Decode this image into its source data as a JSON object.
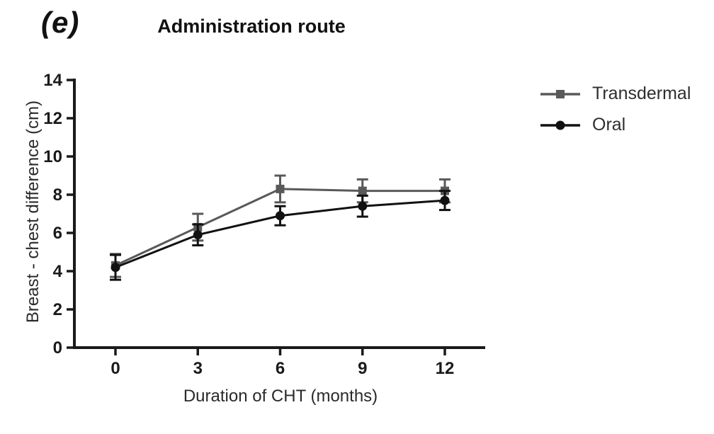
{
  "panel_label": "(e)",
  "title": "Administration route",
  "chart_data": {
    "type": "line",
    "x": [
      0,
      3,
      6,
      9,
      12
    ],
    "x_ticks": [
      "0",
      "3",
      "6",
      "9",
      "12"
    ],
    "y_ticks": [
      "0",
      "2",
      "4",
      "6",
      "8",
      "10",
      "12",
      "14"
    ],
    "xlabel": "Duration of CHT (months)",
    "ylabel": "Breast - chest difference (cm)",
    "xlim": [
      0,
      12
    ],
    "ylim": [
      0,
      14
    ],
    "grid": false,
    "legend_position": "right",
    "error_bars": true,
    "series": [
      {
        "name": "Transdermal",
        "marker": "square",
        "color": "#595959",
        "values": [
          4.3,
          6.3,
          8.3,
          8.2,
          8.2
        ],
        "errors": [
          0.6,
          0.7,
          0.7,
          0.6,
          0.6
        ]
      },
      {
        "name": "Oral",
        "marker": "circle",
        "color": "#111111",
        "values": [
          4.2,
          5.9,
          6.9,
          7.4,
          7.7
        ],
        "errors": [
          0.65,
          0.55,
          0.5,
          0.55,
          0.5
        ]
      }
    ],
    "axis_color": "#1a1a1a"
  }
}
